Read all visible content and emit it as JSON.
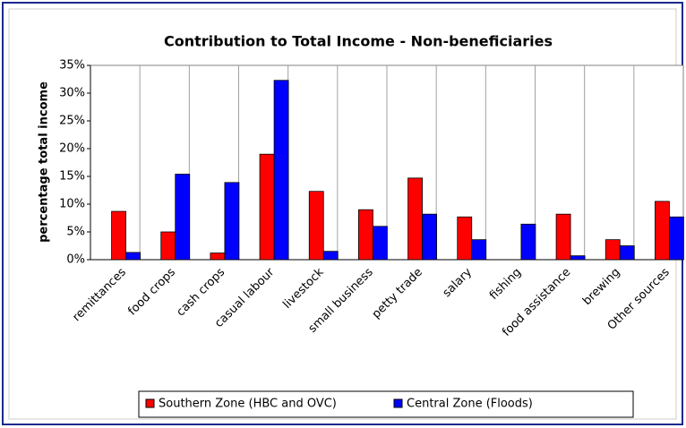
{
  "chart_data": {
    "type": "bar",
    "title": "Contribution to Total Income - Non-beneficiaries",
    "y_label": "percentage total income",
    "categories": [
      "remittances",
      "food crops",
      "cash crops",
      "casual labour",
      "livestock",
      "small business",
      "petty trade",
      "salary",
      "fishing",
      "food assistance",
      "brewing",
      "Other sources"
    ],
    "series": [
      {
        "name": "Southern Zone (HBC and OVC)",
        "color": "#ff0000",
        "values": [
          8.7,
          5.0,
          1.2,
          19.0,
          12.3,
          9.0,
          14.7,
          7.7,
          0,
          8.2,
          3.6,
          10.5
        ]
      },
      {
        "name": "Central Zone (Floods)",
        "color": "#0000ff",
        "values": [
          1.3,
          15.4,
          13.9,
          32.3,
          1.5,
          6.0,
          8.2,
          3.6,
          6.4,
          0.7,
          2.5,
          7.7
        ]
      }
    ],
    "ylim": [
      0,
      35
    ],
    "yticks": [
      {
        "value": 0,
        "label": "0%"
      },
      {
        "value": 5,
        "label": "5%"
      },
      {
        "value": 10,
        "label": "10%"
      },
      {
        "value": 15,
        "label": "15%"
      },
      {
        "value": 20,
        "label": "20%"
      },
      {
        "value": 25,
        "label": "25%"
      },
      {
        "value": 30,
        "label": "30%"
      },
      {
        "value": 35,
        "label": "35%"
      }
    ],
    "legend": "bottom"
  }
}
